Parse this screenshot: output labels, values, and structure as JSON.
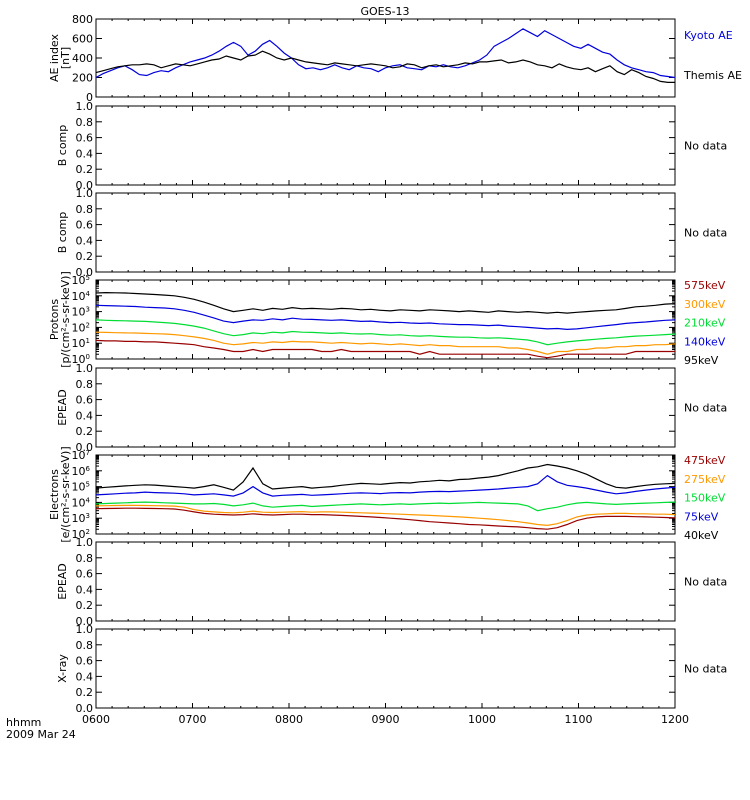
{
  "title": "GOES-13",
  "bottom_label": {
    "line1": "hhmm",
    "line2": "2009 Mar 24"
  },
  "x_ticks": [
    "0600",
    "0700",
    "0800",
    "0900",
    "1000",
    "1100",
    "1200"
  ],
  "chart_data": [
    {
      "type": "line",
      "id": "ae",
      "ylabel": [
        "AE index",
        "[nT]"
      ],
      "yscale": "linear",
      "ylim": [
        0,
        800
      ],
      "yticks": [
        "0",
        "200",
        "400",
        "600",
        "800"
      ],
      "x_start": "06:00",
      "x_end": "12:00",
      "series": [
        {
          "name": "Kyoto AE",
          "color": "#0000dd",
          "values": [
            200,
            240,
            270,
            300,
            320,
            280,
            230,
            220,
            250,
            270,
            260,
            300,
            330,
            360,
            380,
            400,
            430,
            470,
            520,
            560,
            520,
            430,
            470,
            540,
            580,
            520,
            450,
            400,
            330,
            290,
            300,
            280,
            300,
            330,
            300,
            280,
            320,
            300,
            290,
            260,
            300,
            320,
            330,
            300,
            290,
            280,
            320,
            310,
            330,
            310,
            300,
            320,
            350,
            380,
            430,
            520,
            560,
            600,
            650,
            700,
            660,
            620,
            680,
            640,
            600,
            560,
            520,
            500,
            540,
            500,
            460,
            440,
            380,
            330,
            300,
            280,
            260,
            250,
            220,
            210,
            200
          ]
        },
        {
          "name": "Themis AE",
          "color": "#000000",
          "values": [
            250,
            270,
            290,
            310,
            320,
            330,
            330,
            340,
            330,
            300,
            320,
            340,
            330,
            320,
            340,
            360,
            380,
            390,
            420,
            400,
            380,
            420,
            430,
            470,
            440,
            400,
            380,
            400,
            380,
            360,
            350,
            340,
            330,
            350,
            340,
            330,
            320,
            330,
            340,
            330,
            320,
            300,
            310,
            340,
            330,
            300,
            320,
            330,
            310,
            320,
            330,
            350,
            340,
            360,
            360,
            370,
            380,
            350,
            360,
            380,
            360,
            330,
            320,
            300,
            340,
            310,
            290,
            280,
            300,
            260,
            290,
            320,
            260,
            230,
            280,
            250,
            210,
            190,
            160,
            150,
            150
          ]
        }
      ]
    },
    {
      "type": "line",
      "id": "b1",
      "ylabel": [
        "B comp"
      ],
      "yscale": "linear",
      "ylim": [
        0,
        1
      ],
      "yticks": [
        "0.0",
        "0.2",
        "0.4",
        "0.6",
        "0.8",
        "1.0"
      ],
      "status": "No data",
      "series": []
    },
    {
      "type": "line",
      "id": "b2",
      "ylabel": [
        "B comp"
      ],
      "yscale": "linear",
      "ylim": [
        0,
        1
      ],
      "yticks": [
        "0.0",
        "0.2",
        "0.4",
        "0.6",
        "0.8",
        "1.0"
      ],
      "status": "No data",
      "series": []
    },
    {
      "type": "line",
      "id": "protons",
      "ylabel": [
        "Protons",
        "[p/(cm²-s-sr-keV)]"
      ],
      "yscale": "log",
      "ylim": [
        1,
        100000
      ],
      "yticks": [
        {
          "base": "10",
          "exp": "0"
        },
        {
          "base": "10",
          "exp": "1"
        },
        {
          "base": "10",
          "exp": "2"
        },
        {
          "base": "10",
          "exp": "3"
        },
        {
          "base": "10",
          "exp": "4"
        },
        {
          "base": "10",
          "exp": "5"
        }
      ],
      "legend_order": [
        "575keV",
        "300keV",
        "210keV",
        "140keV",
        "95keV"
      ],
      "series": [
        {
          "name": "95keV",
          "color": "#000000",
          "values": [
            15000,
            16000,
            15500,
            15000,
            14000,
            13000,
            12000,
            11000,
            10000,
            8000,
            6000,
            4000,
            2500,
            1500,
            1000,
            1200,
            1500,
            1200,
            1600,
            1400,
            1800,
            1500,
            1600,
            1500,
            1400,
            1600,
            1500,
            1300,
            1400,
            1200,
            1100,
            1300,
            1200,
            1100,
            1300,
            1200,
            1100,
            1000,
            1100,
            1000,
            900,
            1100,
            1000,
            900,
            1000,
            900,
            800,
            900,
            800,
            900,
            1000,
            1100,
            1200,
            1300,
            1600,
            2000,
            2200,
            2500,
            3000,
            3200
          ]
        },
        {
          "name": "140keV",
          "color": "#0000dd",
          "values": [
            2500,
            2400,
            2300,
            2200,
            2100,
            1900,
            1800,
            1700,
            1500,
            1200,
            900,
            600,
            400,
            250,
            200,
            250,
            300,
            280,
            350,
            300,
            380,
            330,
            320,
            300,
            280,
            300,
            270,
            240,
            250,
            220,
            200,
            210,
            190,
            180,
            190,
            170,
            160,
            150,
            150,
            140,
            130,
            140,
            120,
            110,
            100,
            90,
            80,
            85,
            75,
            80,
            95,
            110,
            130,
            150,
            180,
            200,
            220,
            250,
            280,
            300
          ]
        },
        {
          "name": "210keV",
          "color": "#00dd33",
          "values": [
            300,
            280,
            270,
            260,
            250,
            240,
            220,
            200,
            180,
            150,
            120,
            90,
            60,
            40,
            30,
            35,
            45,
            40,
            50,
            45,
            55,
            50,
            48,
            45,
            42,
            45,
            40,
            38,
            40,
            35,
            32,
            34,
            30,
            28,
            30,
            27,
            25,
            24,
            24,
            22,
            21,
            22,
            20,
            18,
            16,
            12,
            8,
            10,
            12,
            14,
            16,
            18,
            20,
            22,
            25,
            28,
            30,
            32,
            35,
            38
          ]
        },
        {
          "name": "300keV",
          "color": "#ff9900",
          "values": [
            50,
            48,
            46,
            45,
            44,
            42,
            40,
            38,
            35,
            30,
            25,
            20,
            15,
            10,
            8,
            9,
            11,
            10,
            12,
            11,
            13,
            12,
            12,
            11,
            10,
            11,
            10,
            9,
            10,
            9,
            8,
            9,
            8,
            7,
            8,
            7,
            7,
            6,
            6,
            6,
            6,
            6,
            5,
            5,
            4,
            3,
            2,
            3,
            3,
            4,
            4,
            5,
            5,
            6,
            6,
            7,
            7,
            8,
            8,
            9
          ]
        },
        {
          "name": "575keV",
          "color": "#990000",
          "values": [
            15,
            14,
            14,
            13,
            13,
            12,
            12,
            11,
            10,
            9,
            8,
            6,
            5,
            4,
            3,
            3,
            4,
            3,
            4,
            4,
            4,
            4,
            4,
            3,
            3,
            4,
            3,
            3,
            3,
            3,
            3,
            3,
            3,
            2,
            3,
            2,
            2,
            2,
            2,
            2,
            2,
            2,
            2,
            2,
            2,
            1.5,
            1.2,
            1.5,
            2,
            2,
            2,
            2,
            2,
            2,
            2,
            3,
            3,
            3,
            3,
            3
          ]
        }
      ]
    },
    {
      "type": "line",
      "id": "epead1",
      "ylabel": [
        "EPEAD"
      ],
      "yscale": "linear",
      "ylim": [
        0,
        1
      ],
      "yticks": [
        "0.0",
        "0.2",
        "0.4",
        "0.6",
        "0.8",
        "1.0"
      ],
      "status": "No data",
      "series": []
    },
    {
      "type": "line",
      "id": "electrons",
      "ylabel": [
        "Electrons",
        "[e/(cm²-s-sr-keV)]"
      ],
      "yscale": "log",
      "ylim": [
        100,
        10000000
      ],
      "yticks": [
        {
          "base": "10",
          "exp": "2"
        },
        {
          "base": "10",
          "exp": "3"
        },
        {
          "base": "10",
          "exp": "4"
        },
        {
          "base": "10",
          "exp": "5"
        },
        {
          "base": "10",
          "exp": "6"
        },
        {
          "base": "10",
          "exp": "7"
        }
      ],
      "legend_order": [
        "475keV",
        "275keV",
        "150keV",
        "75keV",
        "40keV"
      ],
      "series": [
        {
          "name": "40keV",
          "color": "#000000",
          "values": [
            80000,
            90000,
            100000,
            110000,
            120000,
            130000,
            125000,
            110000,
            100000,
            90000,
            80000,
            100000,
            130000,
            90000,
            60000,
            200000,
            1500000,
            150000,
            70000,
            80000,
            90000,
            100000,
            80000,
            90000,
            100000,
            120000,
            140000,
            160000,
            150000,
            140000,
            160000,
            180000,
            170000,
            200000,
            220000,
            250000,
            230000,
            280000,
            300000,
            350000,
            400000,
            500000,
            700000,
            1000000,
            1500000,
            1800000,
            2500000,
            2000000,
            1500000,
            1000000,
            600000,
            300000,
            150000,
            90000,
            80000,
            100000,
            120000,
            140000,
            150000,
            160000
          ]
        },
        {
          "name": "75keV",
          "color": "#0000dd",
          "values": [
            30000,
            32000,
            35000,
            38000,
            40000,
            45000,
            42000,
            40000,
            38000,
            35000,
            30000,
            32000,
            35000,
            30000,
            25000,
            40000,
            100000,
            40000,
            25000,
            28000,
            30000,
            32000,
            28000,
            30000,
            32000,
            35000,
            38000,
            40000,
            38000,
            36000,
            40000,
            42000,
            40000,
            45000,
            48000,
            50000,
            48000,
            52000,
            55000,
            60000,
            65000,
            70000,
            80000,
            90000,
            100000,
            150000,
            500000,
            200000,
            120000,
            100000,
            80000,
            60000,
            45000,
            35000,
            40000,
            50000,
            60000,
            70000,
            80000,
            90000
          ]
        },
        {
          "name": "150keV",
          "color": "#00dd33",
          "values": [
            8000,
            8500,
            9000,
            9500,
            10000,
            10500,
            10000,
            9500,
            9000,
            8500,
            8000,
            8000,
            8500,
            7500,
            6000,
            7000,
            9000,
            6000,
            5000,
            5500,
            6000,
            6500,
            5500,
            6000,
            6500,
            7000,
            7500,
            8000,
            7500,
            7000,
            7500,
            8000,
            7500,
            8000,
            8500,
            9000,
            8500,
            9000,
            9500,
            10000,
            9500,
            9000,
            8500,
            8000,
            6000,
            3000,
            4000,
            5000,
            7000,
            9000,
            10000,
            9000,
            8000,
            7500,
            8000,
            8500,
            9000,
            9500,
            10000,
            10500
          ]
        },
        {
          "name": "275keV",
          "color": "#ff9900",
          "values": [
            6000,
            6200,
            6400,
            6500,
            6500,
            6400,
            6200,
            6000,
            5800,
            5000,
            3500,
            2800,
            2500,
            2300,
            2200,
            2400,
            2800,
            2400,
            2300,
            2400,
            2500,
            2600,
            2400,
            2500,
            2500,
            2400,
            2300,
            2200,
            2100,
            2000,
            1900,
            1800,
            1700,
            1600,
            1500,
            1400,
            1300,
            1200,
            1100,
            1000,
            900,
            800,
            700,
            600,
            500,
            400,
            350,
            450,
            700,
            1200,
            1600,
            1800,
            1900,
            2000,
            2000,
            1900,
            1900,
            1800,
            1800,
            1700
          ]
        },
        {
          "name": "475keV",
          "color": "#990000",
          "values": [
            4000,
            4100,
            4200,
            4300,
            4300,
            4200,
            4100,
            4000,
            3800,
            3200,
            2500,
            2000,
            1800,
            1700,
            1600,
            1700,
            1900,
            1700,
            1600,
            1700,
            1800,
            1800,
            1700,
            1700,
            1600,
            1500,
            1400,
            1300,
            1200,
            1100,
            1000,
            900,
            800,
            700,
            600,
            550,
            500,
            450,
            400,
            380,
            350,
            320,
            300,
            280,
            250,
            220,
            200,
            250,
            400,
            700,
            1000,
            1200,
            1300,
            1300,
            1300,
            1250,
            1200,
            1150,
            1100,
            1050
          ]
        }
      ]
    },
    {
      "type": "line",
      "id": "epead2",
      "ylabel": [
        "EPEAD"
      ],
      "yscale": "linear",
      "ylim": [
        0,
        1
      ],
      "yticks": [
        "0.0",
        "0.2",
        "0.4",
        "0.6",
        "0.8",
        "1.0"
      ],
      "status": "No data",
      "series": []
    },
    {
      "type": "line",
      "id": "xray",
      "ylabel": [
        "X-ray"
      ],
      "yscale": "linear",
      "ylim": [
        0,
        1
      ],
      "yticks": [
        "0.0",
        "0.2",
        "0.4",
        "0.6",
        "0.8",
        "1.0"
      ],
      "status": "No data",
      "series": []
    }
  ]
}
